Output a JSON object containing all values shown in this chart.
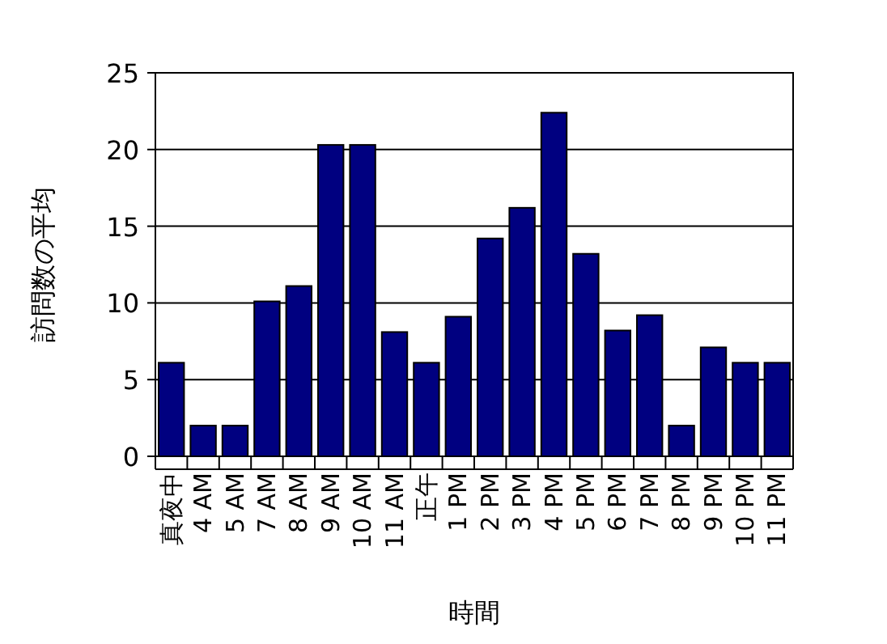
{
  "chart_data": {
    "type": "bar",
    "xlabel": "時間",
    "ylabel": "訪問数の平均",
    "categories": [
      "真夜中",
      "4 AM",
      "5 AM",
      "7 AM",
      "8 AM",
      "9 AM",
      "10 AM",
      "11 AM",
      "正午",
      "1 PM",
      "2 PM",
      "3 PM",
      "4 PM",
      "5 PM",
      "6 PM",
      "7 PM",
      "8 PM",
      "9 PM",
      "10 PM",
      "11 PM"
    ],
    "values": [
      6.1,
      2,
      2,
      10.1,
      11.1,
      20.3,
      20.3,
      8.1,
      6.1,
      9.1,
      14.2,
      16.2,
      22.4,
      13.2,
      8.2,
      9.2,
      2,
      7.1,
      6.1,
      6.1
    ],
    "color": "#000080",
    "ylim": [
      0,
      25
    ],
    "yticks": [
      0,
      5,
      10,
      15,
      20,
      25
    ],
    "grid": "y"
  }
}
